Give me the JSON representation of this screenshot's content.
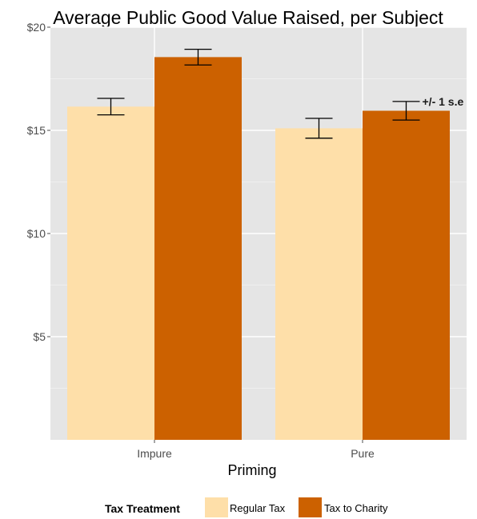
{
  "chart_data": {
    "type": "bar",
    "title": "Average Public Good Value Raised, per Subject",
    "xlabel": "Priming",
    "ylabel": "",
    "categories": [
      "Impure",
      "Pure"
    ],
    "series": [
      {
        "name": "Regular Tax",
        "color": "#fedfa9",
        "values": [
          16.15,
          15.1
        ],
        "se": [
          0.4,
          0.48
        ]
      },
      {
        "name": "Tax to Charity",
        "color": "#cc6100",
        "values": [
          18.55,
          15.95
        ],
        "se": [
          0.38,
          0.45
        ]
      }
    ],
    "ylim": [
      0,
      20
    ],
    "yticks": [
      5,
      10,
      15,
      20
    ],
    "ytick_labels": [
      "$5",
      "$10",
      "$15",
      "$20"
    ],
    "grid": true,
    "legend": {
      "title": "Tax Treatment",
      "placement": "bottom"
    },
    "annotation": "+/- 1 s.e",
    "colors": {
      "panel": "#e5e5e5",
      "grid": "#ffffff"
    }
  }
}
